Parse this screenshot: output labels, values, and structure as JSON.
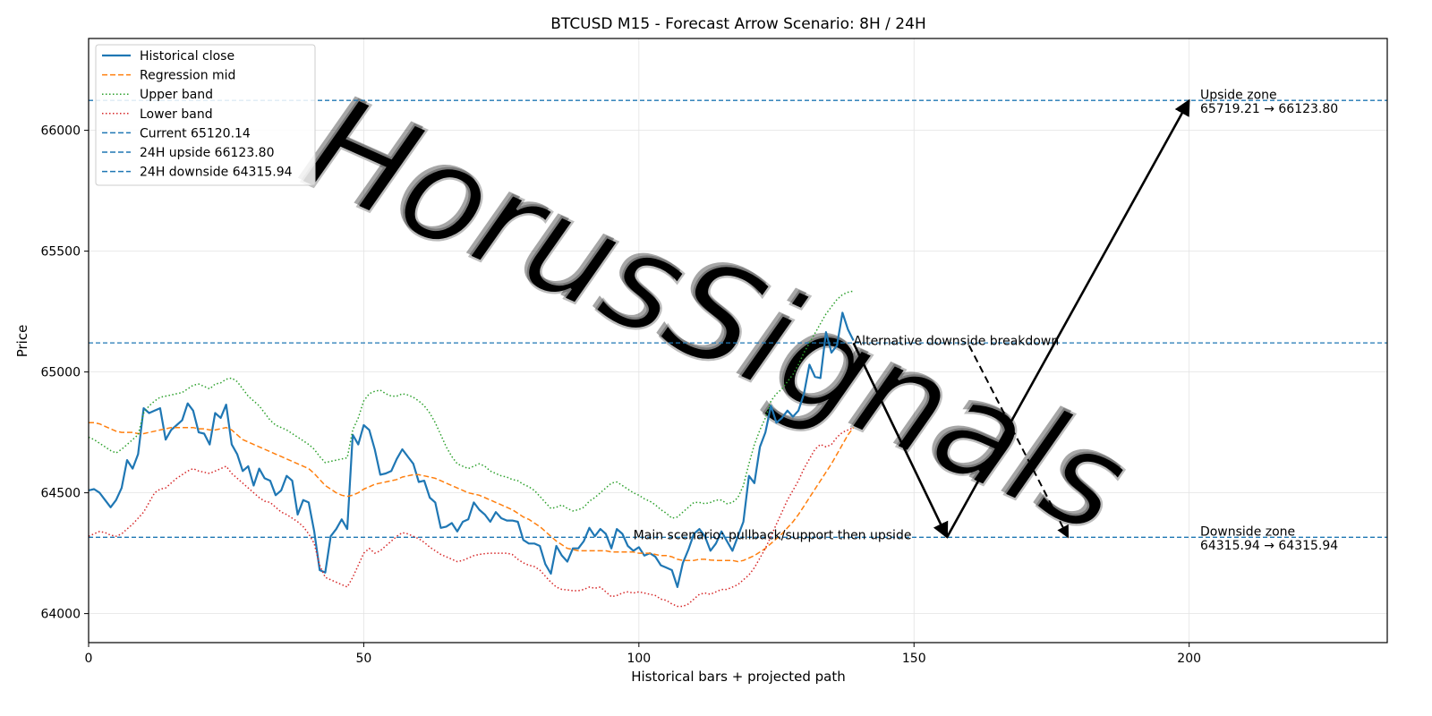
{
  "chart_data": {
    "type": "line",
    "title": "BTCUSD M15 - Forecast Arrow Scenario: 8H / 24H",
    "xlabel": "Historical bars + projected path",
    "ylabel": "Price",
    "xlim": [
      0,
      236
    ],
    "ylim": [
      63880,
      66380
    ],
    "xticks": [
      0,
      50,
      100,
      150,
      200
    ],
    "yticks": [
      64000,
      64500,
      65000,
      65500,
      66000
    ],
    "grid": true,
    "legend_position": "top-left",
    "watermark": "HorusSignals",
    "series": [
      {
        "name": "Historical close",
        "color": "#1f77b4",
        "style": "solid",
        "values": [
          64510,
          64515,
          64500,
          64470,
          64440,
          64470,
          64520,
          64635,
          64600,
          64660,
          64850,
          64830,
          64840,
          64850,
          64720,
          64760,
          64780,
          64800,
          64870,
          64840,
          64750,
          64745,
          64700,
          64830,
          64810,
          64865,
          64700,
          64660,
          64590,
          64610,
          64530,
          64600,
          64560,
          64550,
          64490,
          64510,
          64570,
          64550,
          64410,
          64470,
          64460,
          64340,
          64180,
          64170,
          64320,
          64350,
          64390,
          64350,
          64740,
          64700,
          64780,
          64760,
          64680,
          64575,
          64580,
          64590,
          64640,
          64680,
          64650,
          64620,
          64545,
          64550,
          64480,
          64460,
          64355,
          64360,
          64375,
          64340,
          64380,
          64390,
          64460,
          64430,
          64410,
          64380,
          64420,
          64395,
          64385,
          64385,
          64380,
          64305,
          64290,
          64290,
          64280,
          64205,
          64165,
          64280,
          64240,
          64215,
          64270,
          64270,
          64300,
          64355,
          64320,
          64350,
          64330,
          64270,
          64350,
          64330,
          64280,
          64260,
          64275,
          64240,
          64250,
          64235,
          64200,
          64190,
          64180,
          64110,
          64210,
          64265,
          64330,
          64350,
          64320,
          64260,
          64290,
          64340,
          64300,
          64260,
          64320,
          64380,
          64570,
          64540,
          64690,
          64750,
          64860,
          64790,
          64810,
          64840,
          64815,
          64840,
          64910,
          65030,
          64980,
          64975,
          65165,
          65080,
          65110,
          65245,
          65175,
          65130
        ]
      },
      {
        "name": "Regression mid",
        "color": "#ff7f0e",
        "style": "dashed",
        "values": [
          64790,
          64790,
          64785,
          64775,
          64765,
          64755,
          64750,
          64750,
          64750,
          64745,
          64745,
          64750,
          64755,
          64760,
          64765,
          64770,
          64770,
          64770,
          64770,
          64770,
          64765,
          64765,
          64760,
          64760,
          64765,
          64770,
          64760,
          64740,
          64720,
          64710,
          64700,
          64690,
          64680,
          64670,
          64660,
          64650,
          64640,
          64630,
          64620,
          64610,
          64600,
          64580,
          64555,
          64530,
          64515,
          64500,
          64490,
          64485,
          64490,
          64500,
          64515,
          64525,
          64535,
          64540,
          64545,
          64550,
          64555,
          64565,
          64570,
          64575,
          64575,
          64570,
          64565,
          64560,
          64550,
          64540,
          64530,
          64520,
          64510,
          64500,
          64495,
          64490,
          64480,
          64470,
          64460,
          64450,
          64440,
          64430,
          64415,
          64400,
          64390,
          64375,
          64360,
          64340,
          64320,
          64300,
          64285,
          64270,
          64265,
          64260,
          64260,
          64260,
          64260,
          64260,
          64260,
          64255,
          64255,
          64255,
          64255,
          64255,
          64250,
          64250,
          64250,
          64245,
          64240,
          64240,
          64235,
          64225,
          64220,
          64220,
          64220,
          64225,
          64225,
          64222,
          64220,
          64220,
          64220,
          64220,
          64215,
          64220,
          64230,
          64240,
          64255,
          64270,
          64290,
          64310,
          64330,
          64355,
          64380,
          64410,
          64445,
          64480,
          64515,
          64550,
          64585,
          64620,
          64660,
          64700,
          64740,
          64770
        ]
      },
      {
        "name": "Upper band",
        "color": "#2ca02c",
        "style": "dotted",
        "values": [
          64730,
          64720,
          64705,
          64690,
          64675,
          64665,
          64680,
          64700,
          64720,
          64740,
          64830,
          64860,
          64880,
          64895,
          64900,
          64905,
          64910,
          64915,
          64930,
          64945,
          64950,
          64940,
          64930,
          64950,
          64955,
          64970,
          64975,
          64960,
          64930,
          64900,
          64880,
          64860,
          64830,
          64800,
          64780,
          64770,
          64760,
          64745,
          64730,
          64715,
          64700,
          64680,
          64650,
          64625,
          64630,
          64635,
          64640,
          64645,
          64760,
          64810,
          64880,
          64910,
          64920,
          64925,
          64910,
          64900,
          64900,
          64910,
          64905,
          64895,
          64880,
          64860,
          64830,
          64790,
          64740,
          64690,
          64650,
          64620,
          64610,
          64600,
          64610,
          64620,
          64610,
          64590,
          64580,
          64570,
          64565,
          64555,
          64550,
          64535,
          64525,
          64510,
          64485,
          64460,
          64435,
          64440,
          64450,
          64435,
          64425,
          64430,
          64440,
          64465,
          64480,
          64500,
          64520,
          64540,
          64545,
          64530,
          64515,
          64500,
          64490,
          64475,
          64465,
          64450,
          64430,
          64415,
          64395,
          64400,
          64420,
          64440,
          64460,
          64460,
          64455,
          64460,
          64470,
          64470,
          64455,
          64460,
          64480,
          64530,
          64620,
          64700,
          64760,
          64810,
          64880,
          64910,
          64930,
          64960,
          64990,
          65030,
          65080,
          65120,
          65160,
          65200,
          65240,
          65270,
          65300,
          65320,
          65330,
          65335
        ]
      },
      {
        "name": "Lower band",
        "color": "#d62728",
        "style": "dotted",
        "values": [
          64320,
          64330,
          64340,
          64335,
          64325,
          64320,
          64330,
          64350,
          64370,
          64395,
          64420,
          64460,
          64500,
          64515,
          64520,
          64540,
          64560,
          64575,
          64590,
          64600,
          64590,
          64585,
          64580,
          64590,
          64600,
          64610,
          64580,
          64560,
          64540,
          64520,
          64500,
          64480,
          64465,
          64460,
          64440,
          64420,
          64410,
          64395,
          64380,
          64360,
          64330,
          64290,
          64200,
          64150,
          64140,
          64130,
          64120,
          64110,
          64150,
          64200,
          64250,
          64270,
          64250,
          64260,
          64280,
          64300,
          64320,
          64335,
          64330,
          64320,
          64310,
          64295,
          64275,
          64260,
          64245,
          64235,
          64225,
          64215,
          64220,
          64230,
          64240,
          64245,
          64248,
          64250,
          64250,
          64250,
          64250,
          64245,
          64225,
          64210,
          64200,
          64195,
          64180,
          64155,
          64130,
          64110,
          64100,
          64098,
          64095,
          64095,
          64100,
          64110,
          64105,
          64110,
          64090,
          64070,
          64075,
          64085,
          64090,
          64085,
          64090,
          64085,
          64080,
          64075,
          64060,
          64055,
          64040,
          64030,
          64030,
          64040,
          64060,
          64080,
          64085,
          64080,
          64090,
          64100,
          64100,
          64110,
          64120,
          64140,
          64160,
          64190,
          64230,
          64270,
          64320,
          64370,
          64420,
          64470,
          64510,
          64550,
          64600,
          64640,
          64680,
          64700,
          64690,
          64700,
          64730,
          64750,
          64760,
          64770
        ]
      }
    ],
    "reference_lines": [
      {
        "name": "Current 65120.14",
        "value": 65120.14,
        "color": "#1f77b4",
        "style": "dashed"
      },
      {
        "name": "24H upside 66123.80",
        "value": 66123.8,
        "color": "#1f77b4",
        "style": "dashed"
      },
      {
        "name": "24H downside 64315.94",
        "value": 64315.94,
        "color": "#1f77b4",
        "style": "dashed"
      }
    ],
    "arrows": [
      {
        "from": [
          139,
          65120.14
        ],
        "to": [
          156,
          64315.94
        ],
        "style": "solid",
        "label": "Main scenario: pullback/support then upside"
      },
      {
        "from": [
          156,
          64315.94
        ],
        "to": [
          200,
          66123.8
        ],
        "style": "solid",
        "label": ""
      },
      {
        "from": [
          160,
          65110
        ],
        "to": [
          178,
          64315.94
        ],
        "style": "dashed",
        "label": "Alternative downside breakdown"
      }
    ],
    "annotations": [
      {
        "text": "Alternative downside breakdown",
        "x": 139,
        "y": 65112
      },
      {
        "text": "Main scenario: pullback/support then upside",
        "x": 99,
        "y": 64308
      },
      {
        "text": "Upside zone",
        "x": 202,
        "y": 66130
      },
      {
        "text": "65719.21 → 66123.80",
        "x": 202,
        "y": 66072
      },
      {
        "text": "Downside zone",
        "x": 202,
        "y": 64322
      },
      {
        "text": "64315.94 → 64315.94",
        "x": 202,
        "y": 64265
      }
    ]
  }
}
